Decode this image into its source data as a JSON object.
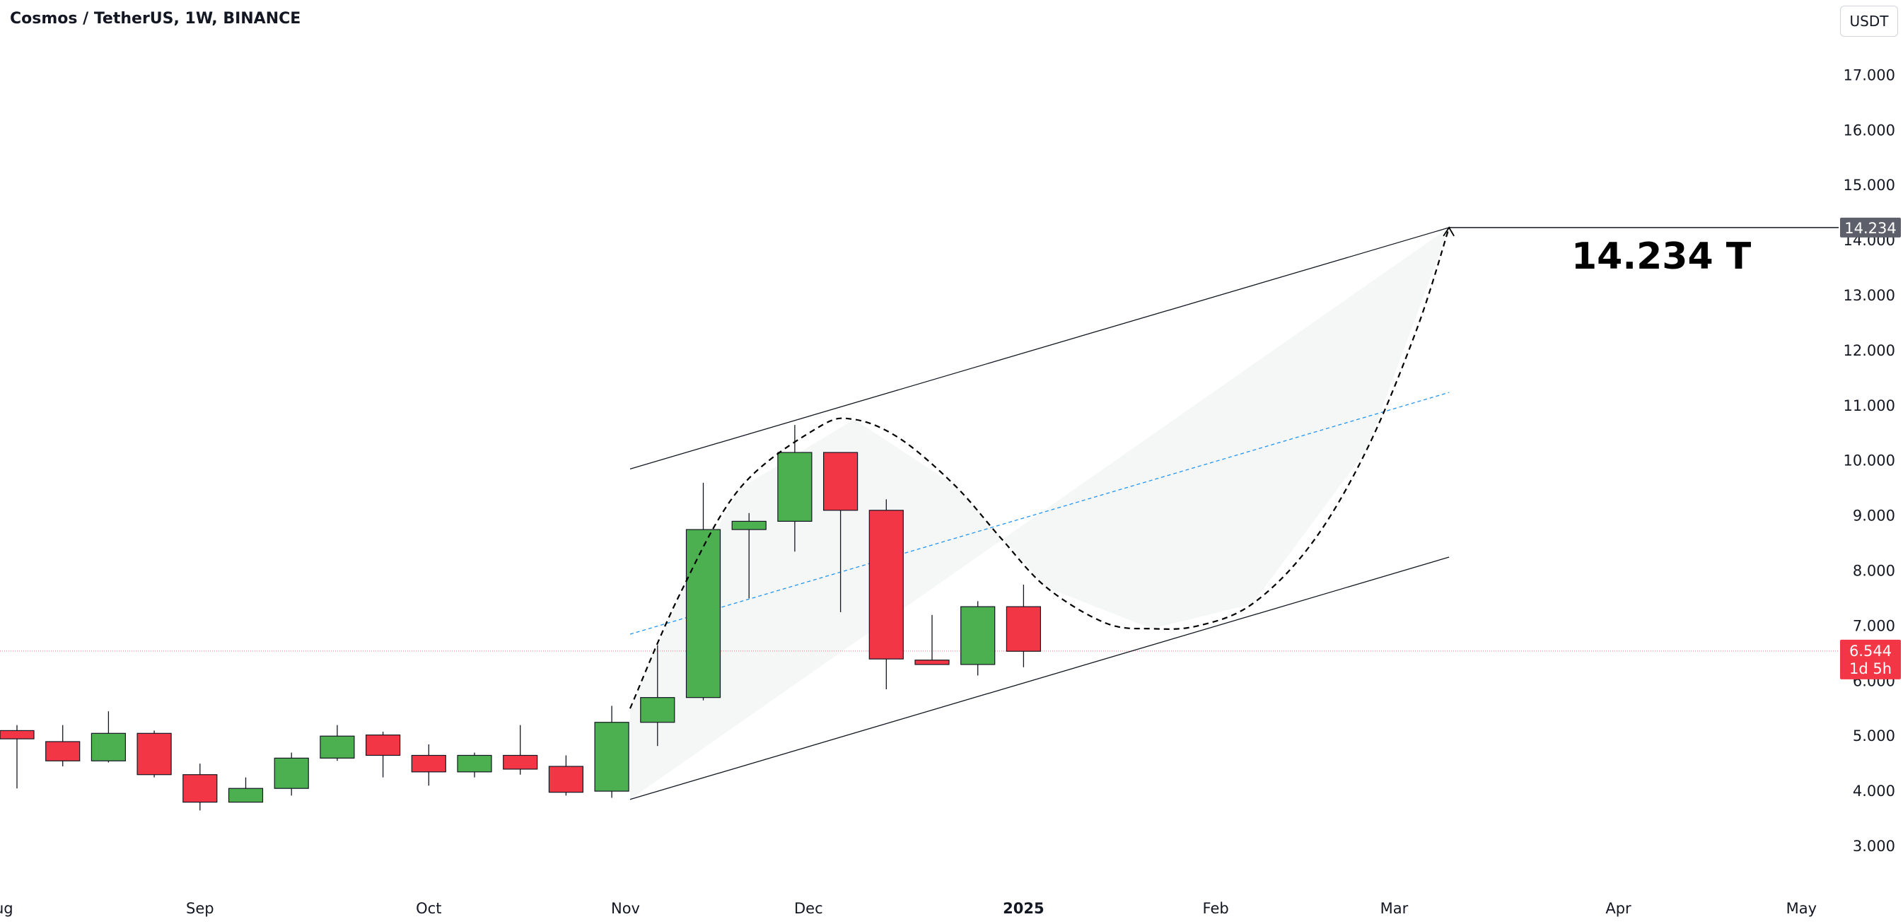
{
  "header": {
    "title": "Cosmos / TetherUS, 1W, BINANCE"
  },
  "toolbar": {
    "currency_label": "USDT"
  },
  "colors": {
    "up": "#4caf50",
    "down": "#f23645",
    "grid_line": "#f23645",
    "target_bg": "#5d606b",
    "mid_line": "#2196f3"
  },
  "chart_data": {
    "type": "candlestick",
    "title": "Cosmos / TetherUS, 1W, BINANCE",
    "interval": "1W",
    "y_ticks": [
      "3.000",
      "4.000",
      "5.000",
      "6.000",
      "7.000",
      "8.000",
      "9.000",
      "10.000",
      "11.000",
      "12.000",
      "13.000",
      "14.000",
      "15.000",
      "16.000",
      "17.000"
    ],
    "ylim": [
      2.3,
      17.8
    ],
    "x_labels": [
      {
        "label": "Aug",
        "week": -0.4,
        "bold": false
      },
      {
        "label": "Sep",
        "week": 4.0,
        "bold": false
      },
      {
        "label": "Oct",
        "week": 9.0,
        "bold": false
      },
      {
        "label": "Nov",
        "week": 13.3,
        "bold": false
      },
      {
        "label": "Dec",
        "week": 17.3,
        "bold": false
      },
      {
        "label": "2025",
        "week": 22.0,
        "bold": true
      },
      {
        "label": "Feb",
        "week": 26.2,
        "bold": false
      },
      {
        "label": "Mar",
        "week": 30.1,
        "bold": false
      },
      {
        "label": "Apr",
        "week": 35.0,
        "bold": false
      },
      {
        "label": "May",
        "week": 39.0,
        "bold": false
      }
    ],
    "candles": [
      {
        "o": 5.1,
        "h": 5.2,
        "l": 4.05,
        "c": 4.95
      },
      {
        "o": 4.9,
        "h": 5.2,
        "l": 4.45,
        "c": 4.55
      },
      {
        "o": 4.55,
        "h": 5.45,
        "l": 4.52,
        "c": 5.05
      },
      {
        "o": 5.05,
        "h": 5.1,
        "l": 4.25,
        "c": 4.3
      },
      {
        "o": 4.3,
        "h": 4.5,
        "l": 3.65,
        "c": 3.8
      },
      {
        "o": 3.8,
        "h": 4.25,
        "l": 3.8,
        "c": 4.05
      },
      {
        "o": 4.05,
        "h": 4.7,
        "l": 3.92,
        "c": 4.6
      },
      {
        "o": 4.6,
        "h": 5.2,
        "l": 4.55,
        "c": 5.0
      },
      {
        "o": 5.02,
        "h": 5.08,
        "l": 4.25,
        "c": 4.65
      },
      {
        "o": 4.65,
        "h": 4.85,
        "l": 4.1,
        "c": 4.35
      },
      {
        "o": 4.35,
        "h": 4.7,
        "l": 4.25,
        "c": 4.65
      },
      {
        "o": 4.65,
        "h": 5.2,
        "l": 4.3,
        "c": 4.4
      },
      {
        "o": 4.45,
        "h": 4.65,
        "l": 3.92,
        "c": 3.98
      },
      {
        "o": 4.0,
        "h": 5.55,
        "l": 3.88,
        "c": 5.25
      },
      {
        "o": 5.25,
        "h": 6.65,
        "l": 4.82,
        "c": 5.7
      },
      {
        "o": 5.7,
        "h": 9.6,
        "l": 5.65,
        "c": 8.75
      },
      {
        "o": 8.75,
        "h": 9.05,
        "l": 7.5,
        "c": 8.9
      },
      {
        "o": 8.9,
        "h": 10.65,
        "l": 8.35,
        "c": 10.15
      },
      {
        "o": 10.15,
        "h": 10.1,
        "l": 7.25,
        "c": 9.1
      },
      {
        "o": 9.1,
        "h": 9.3,
        "l": 5.85,
        "c": 6.4
      },
      {
        "o": 6.38,
        "h": 7.2,
        "l": 6.3,
        "c": 6.3
      },
      {
        "o": 6.3,
        "h": 7.45,
        "l": 6.1,
        "c": 7.35
      },
      {
        "o": 7.35,
        "h": 7.75,
        "l": 6.25,
        "c": 6.54
      }
    ],
    "current_price": {
      "value": 6.544,
      "label": "6.544",
      "countdown": "1d 5h"
    },
    "target": {
      "value": 14.234,
      "label": "14.234",
      "annotation": "14.234 T"
    },
    "channel": {
      "upper": [
        [
          13.4,
          9.85
        ],
        [
          31.3,
          14.234
        ]
      ],
      "lower": [
        [
          13.4,
          3.85
        ],
        [
          31.3,
          8.25
        ]
      ],
      "mid": [
        [
          13.4,
          6.85
        ],
        [
          31.3,
          11.24
        ]
      ]
    },
    "projection_path": [
      [
        13.4,
        5.5
      ],
      [
        14.5,
        7.6
      ],
      [
        15.8,
        9.5
      ],
      [
        17.5,
        10.6
      ],
      [
        18.3,
        10.75
      ],
      [
        19.3,
        10.4
      ],
      [
        20.5,
        9.55
      ],
      [
        21.5,
        8.6
      ],
      [
        22.5,
        7.7
      ],
      [
        23.8,
        7.05
      ],
      [
        24.8,
        6.95
      ],
      [
        25.8,
        7.0
      ],
      [
        27.0,
        7.4
      ],
      [
        28.3,
        8.5
      ],
      [
        29.5,
        10.2
      ],
      [
        30.6,
        12.4
      ],
      [
        31.3,
        14.234
      ]
    ],
    "projection_area": [
      [
        13.4,
        3.85
      ],
      [
        31.3,
        14.234
      ],
      [
        29.5,
        10.2
      ],
      [
        27.0,
        7.4
      ],
      [
        24.8,
        6.95
      ],
      [
        22.5,
        7.7
      ],
      [
        20.5,
        9.55
      ],
      [
        18.3,
        10.75
      ],
      [
        15.8,
        9.5
      ],
      [
        14.5,
        7.6
      ],
      [
        13.4,
        5.5
      ]
    ]
  }
}
